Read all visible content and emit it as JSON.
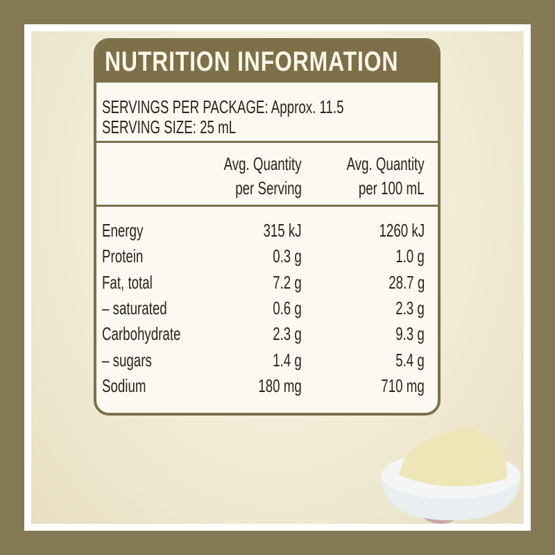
{
  "header": {
    "title": "NUTRITION INFORMATION"
  },
  "servings": [
    "SERVINGS PER PACKAGE: Approx. 11.5",
    "SERVING SIZE: 25 mL"
  ],
  "table": {
    "columns": [
      [
        "Avg. Quantity",
        "per Serving"
      ],
      [
        "Avg. Quantity",
        "per 100 mL"
      ]
    ],
    "rows": [
      [
        "Energy",
        "315 kJ",
        "1260 kJ"
      ],
      [
        "Protein",
        "0.3 g",
        "1.0 g"
      ],
      [
        "Fat, total",
        "7.2 g",
        "28.7 g"
      ],
      [
        "– saturated",
        "0.6 g",
        "2.3 g"
      ],
      [
        "Carbohydrate",
        "2.3 g",
        "9.3 g"
      ],
      [
        "– sugars",
        "1.4 g",
        "5.4 g"
      ],
      [
        "Sodium",
        "180 mg",
        "710 mg"
      ]
    ]
  }
}
